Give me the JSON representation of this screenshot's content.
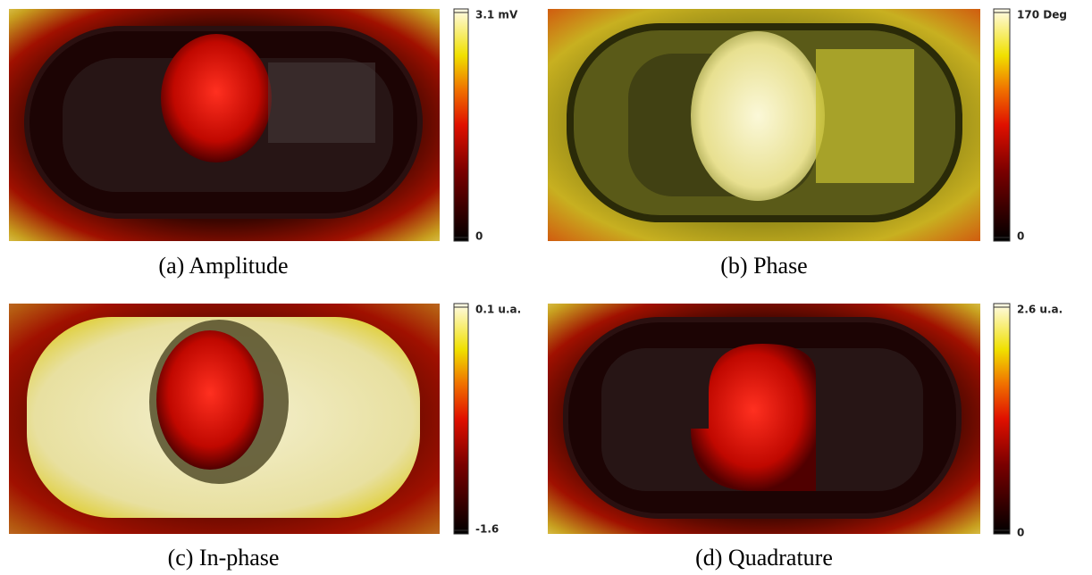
{
  "panels": [
    {
      "caption": "(a) Amplitude",
      "colorbar": {
        "max_label": "3.1 mV",
        "min_label": "0"
      }
    },
    {
      "caption": "(b) Phase",
      "colorbar": {
        "max_label": "170 Deg",
        "min_label": "0"
      }
    },
    {
      "caption": "(c) In-phase",
      "colorbar": {
        "max_label": "0.1 u.a.",
        "min_label": "-1.6"
      }
    },
    {
      "caption": "(d) Quadrature",
      "colorbar": {
        "max_label": "2.6 u.a.",
        "min_label": "0"
      }
    }
  ]
}
